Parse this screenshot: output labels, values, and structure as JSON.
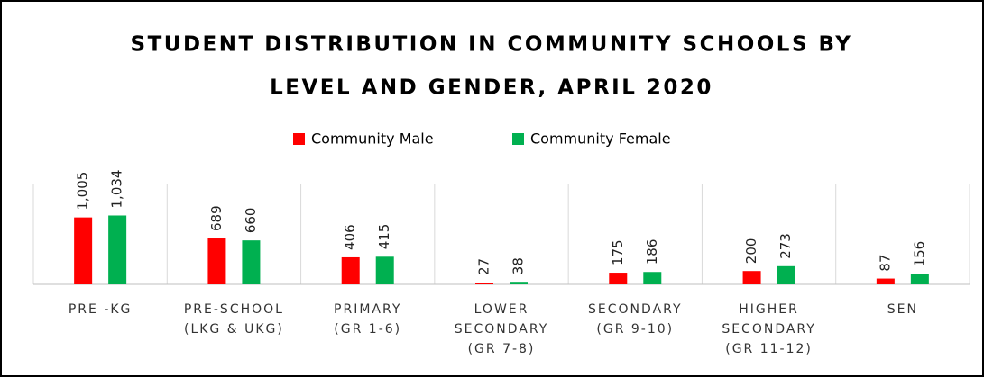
{
  "chart_data": {
    "type": "bar",
    "title": [
      "STUDENT DISTRIBUTION IN COMMUNITY SCHOOLS BY",
      "LEVEL AND GENDER, APRIL 2020"
    ],
    "categories": [
      [
        "PRE -KG"
      ],
      [
        "PRE-SCHOOL",
        "(LKG & UKG)"
      ],
      [
        "PRIMARY",
        "(GR 1-6)"
      ],
      [
        "LOWER",
        "SECONDARY",
        "(GR 7-8)"
      ],
      [
        "SECONDARY",
        "(GR 9-10)"
      ],
      [
        "HIGHER",
        "SECONDARY",
        "(GR 11-12)"
      ],
      [
        "SEN"
      ]
    ],
    "series": [
      {
        "name": "Community  Male",
        "color": "#ff0000",
        "values": [
          1005,
          689,
          406,
          27,
          175,
          200,
          87
        ],
        "value_labels": [
          "1,005",
          "689",
          "406",
          "27",
          "175",
          "200",
          "87"
        ]
      },
      {
        "name": "Community  Female",
        "color": "#00b050",
        "values": [
          1034,
          660,
          415,
          38,
          186,
          273,
          156
        ],
        "value_labels": [
          "1,034",
          "660",
          "415",
          "38",
          "186",
          "273",
          "156"
        ]
      }
    ],
    "ylim": [
      0,
      1500
    ]
  }
}
